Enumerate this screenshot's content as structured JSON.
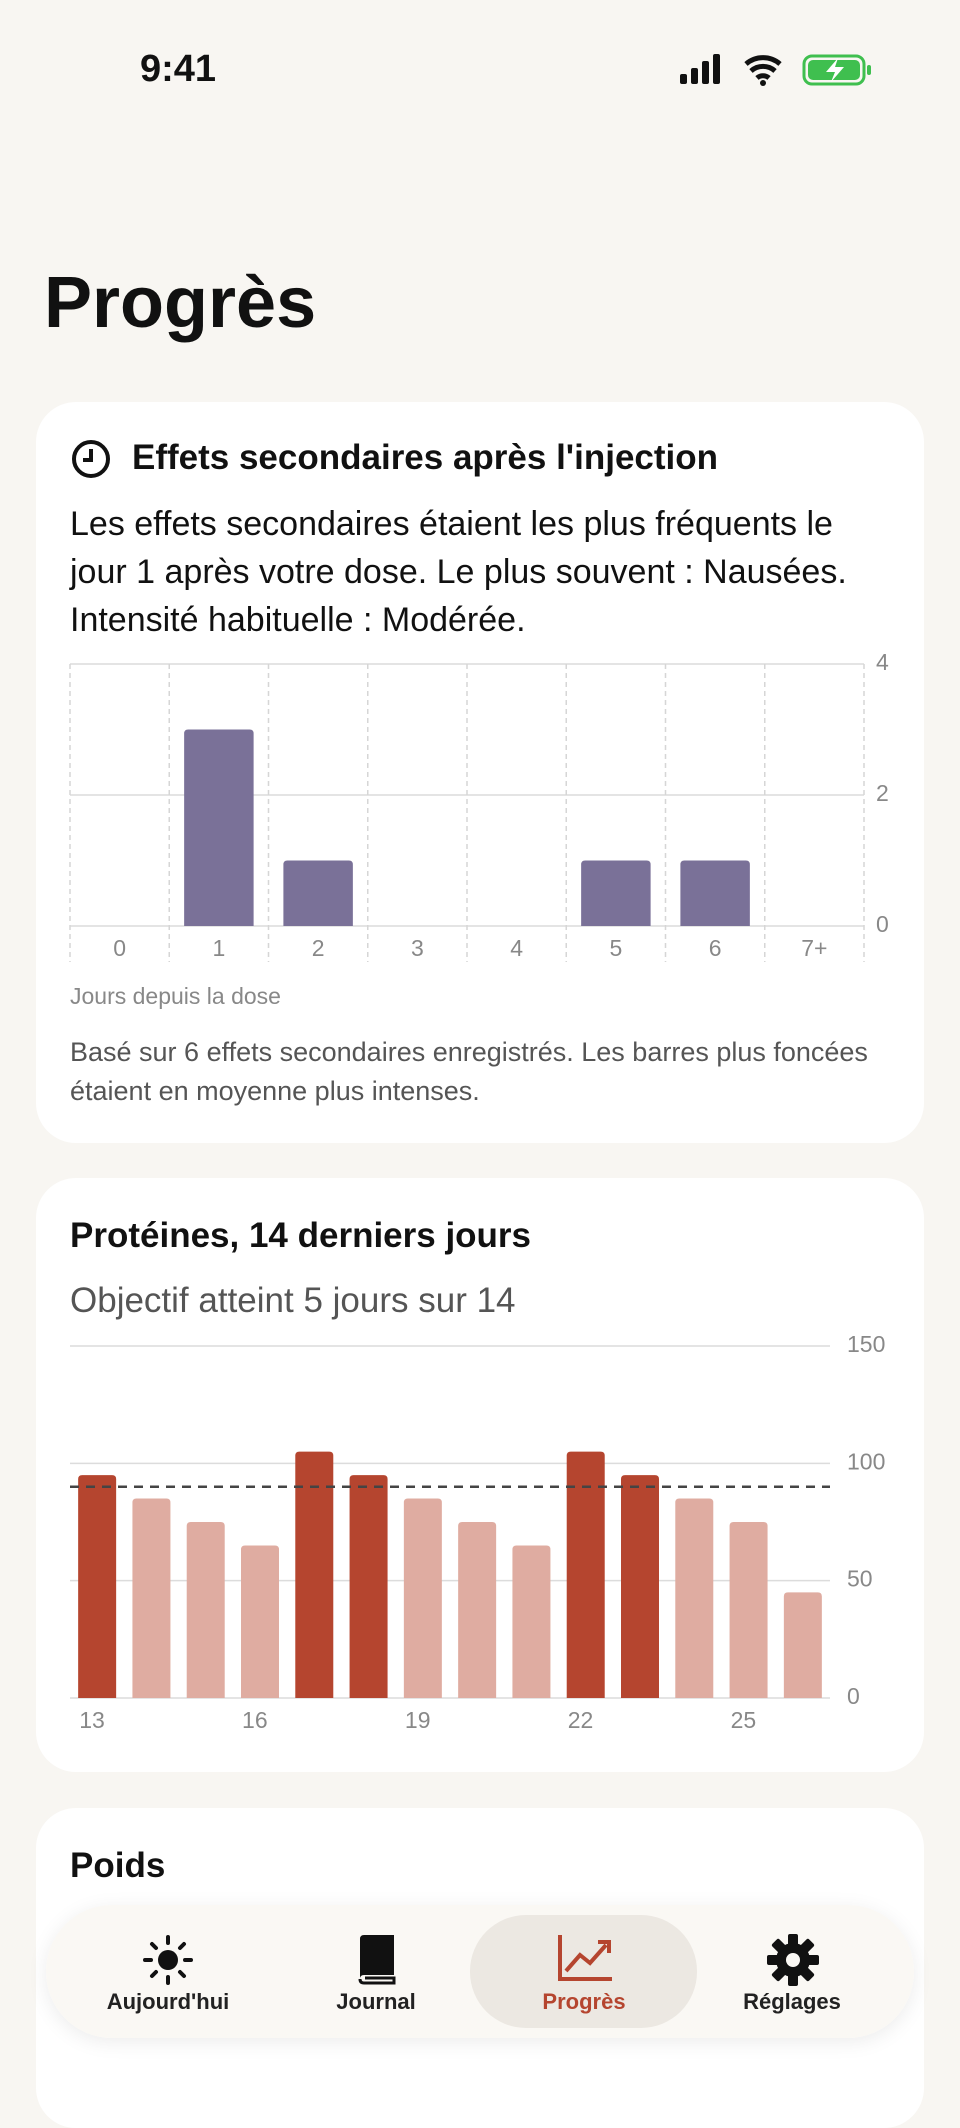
{
  "status": {
    "time": "9:41"
  },
  "header": {
    "title": "Progrès"
  },
  "chart_data": [
    {
      "type": "bar",
      "title": "Effets secondaires après l'injection",
      "subtitle": "Les effets secondaires étaient les plus fréquents le jour 1 après votre dose. Le plus souvent : Nausées. Intensité habituelle : Modérée.",
      "categories": [
        "0",
        "1",
        "2",
        "3",
        "4",
        "5",
        "6",
        "7+"
      ],
      "values": [
        0,
        3,
        1,
        0,
        0,
        1,
        1,
        0
      ],
      "color": "#7a7198",
      "ylim": [
        0,
        4
      ],
      "yticks": [
        0,
        2,
        4
      ],
      "grid": true,
      "xlabel": "Jours depuis la dose",
      "note": "Basé sur 6 effets secondaires enregistrés. Les barres plus foncées étaient en moyenne plus intenses."
    },
    {
      "type": "bar",
      "title": "Protéines, 14 derniers jours",
      "subtitle": "Objectif atteint 5 jours sur 14",
      "categories": [
        "13",
        null,
        null,
        "16",
        null,
        null,
        "19",
        null,
        null,
        "22",
        null,
        null,
        "25",
        null
      ],
      "values": [
        95,
        85,
        75,
        65,
        105,
        95,
        85,
        75,
        65,
        105,
        95,
        85,
        75,
        45
      ],
      "goal": 90,
      "color": "#b5452f",
      "color_below_goal": "#dfaca1",
      "ylim": [
        0,
        150
      ],
      "yticks": [
        0,
        50,
        100,
        150
      ],
      "grid": true
    }
  ],
  "weight": {
    "title": "Poids"
  },
  "tabs": [
    {
      "label": "Aujourd'hui"
    },
    {
      "label": "Journal"
    },
    {
      "label": "Progrès"
    },
    {
      "label": "Réglages"
    }
  ]
}
